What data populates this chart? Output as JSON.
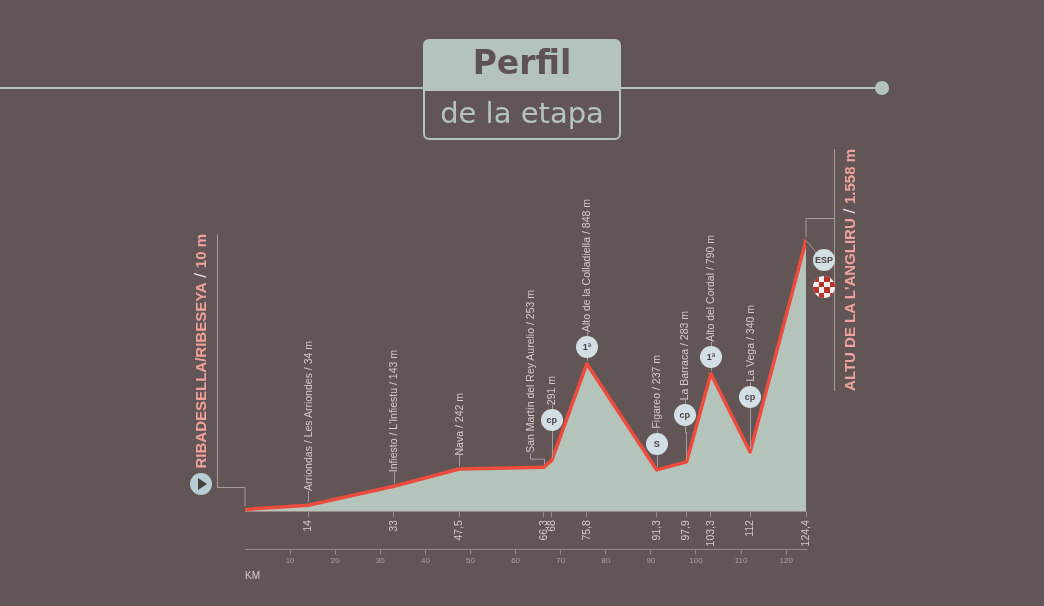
{
  "chart_data": {
    "type": "area",
    "title": "Perfil",
    "subtitle": "de la etapa",
    "x2label": "KM",
    "x": [
      0,
      14,
      33,
      47.5,
      66.3,
      68,
      75.8,
      91.3,
      97.9,
      103.3,
      112,
      124.4
    ],
    "series": [
      {
        "color": "#ec4b3d",
        "values": [
          10,
          34,
          143,
          242,
          253,
          291,
          848,
          237,
          283,
          790,
          340,
          1558
        ],
        "value_labels": [
          "RIBADESELLA/RIBESEYA / 10 m",
          "Arriondas / Les Arriondes / 34 m",
          "Infiesto / L'Infiestu / 143 m",
          "Nava / 242 m",
          "San Martín del Rey Aurelio / 253 m",
          "291 m",
          "Alto de la Colladiella / 848 m",
          "Figareo / 237 m",
          "La Barraca / 283 m",
          "Alto del Cordal / 790 m",
          "La Vega / 340 m",
          "ALTU DE LA L'ANGLIRU / 1.558 m"
        ]
      }
    ],
    "xlim": [
      0,
      124.4
    ],
    "xticks": [
      14,
      33,
      {
        "value": 47.5,
        "label": "47,5"
      },
      {
        "value": 66.3,
        "label": "66,3"
      },
      68,
      {
        "value": 75.8,
        "label": "75,8"
      },
      {
        "value": 91.3,
        "label": "91,3"
      },
      {
        "value": 97.9,
        "label": "97,9"
      },
      {
        "value": 103.3,
        "label": "103,3"
      },
      112,
      {
        "value": 124.4,
        "label": "124,4"
      }
    ],
    "x2lim": [
      0,
      124.4
    ],
    "x2ticks": [
      10,
      20,
      30,
      40,
      50,
      60,
      70,
      80,
      90,
      100,
      110,
      120
    ],
    "tick_labels": "x",
    "annotations": [
      {
        "text": "cp",
        "x": 68,
        "y": 291
      },
      {
        "text": "1ª",
        "x": 75.8,
        "y": 848
      },
      {
        "text": "S",
        "x": 91.3,
        "y": 237
      },
      {
        "text": "cp",
        "x": 97.9,
        "y": 283
      },
      {
        "text": "1ª",
        "x": 103.3,
        "y": 790
      },
      {
        "text": "cp",
        "x": 112,
        "y": 340
      },
      {
        "text": "ESP",
        "x": 124.4,
        "y": 1558
      }
    ]
  }
}
